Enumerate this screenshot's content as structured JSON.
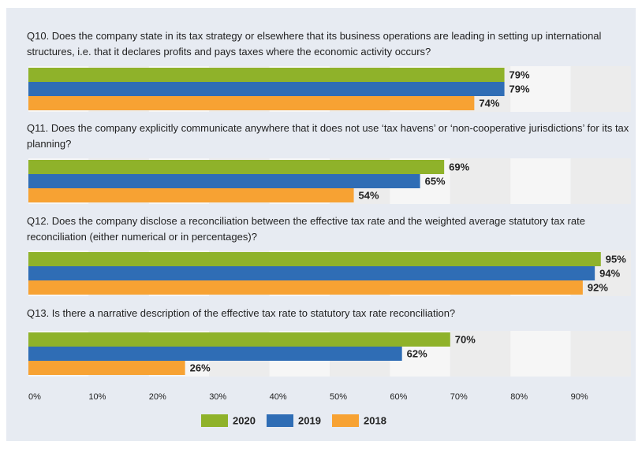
{
  "chart_data": {
    "type": "grouped-bar-horizontal",
    "categories": [
      "Q10. Does the company state in its tax strategy or elsewhere that its business operations are leading in setting up international structures, i.e. that it declares profits and pays taxes where the economic activity occurs?",
      "Q11. Does the company explicitly communicate anywhere that it does not use ‘tax havens’ or ‘non-cooperative jurisdictions’ for its tax planning?",
      "Q12. Does the company disclose a reconciliation between the effective tax rate and the weighted average statutory tax rate reconciliation (either numerical or in percentages)?",
      "Q13. Is there a narrative description of the effective tax rate to statutory tax rate reconciliation?"
    ],
    "series": [
      {
        "name": "2020",
        "color": "#8fb22a",
        "values": [
          79,
          69,
          95,
          70
        ],
        "value_labels": [
          "79%",
          "69%",
          "95%",
          "70%"
        ]
      },
      {
        "name": "2019",
        "color": "#2f6db5",
        "values": [
          79,
          65,
          94,
          62
        ],
        "value_labels": [
          "79%",
          "65%",
          "94%",
          "62%"
        ]
      },
      {
        "name": "2018",
        "color": "#f7a233",
        "values": [
          74,
          54,
          92,
          26
        ],
        "value_labels": [
          "74%",
          "54%",
          "92%",
          "26%"
        ]
      }
    ],
    "xlim": [
      0,
      100
    ],
    "xticks": [
      {
        "value": 0,
        "label": "0%"
      },
      {
        "value": 10,
        "label": "10%"
      },
      {
        "value": 20,
        "label": "20%"
      },
      {
        "value": 30,
        "label": "30%"
      },
      {
        "value": 40,
        "label": "40%"
      },
      {
        "value": 50,
        "label": "50%"
      },
      {
        "value": 60,
        "label": "60%"
      },
      {
        "value": 70,
        "label": "70%"
      },
      {
        "value": 80,
        "label": "80%"
      },
      {
        "value": 90,
        "label": "90%"
      }
    ],
    "legend": "bottom"
  }
}
